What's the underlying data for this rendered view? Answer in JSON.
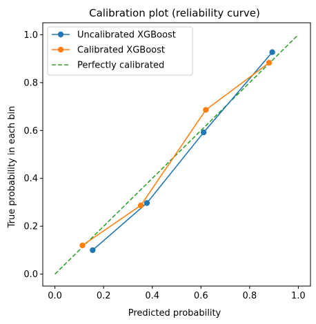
{
  "chart_data": {
    "type": "line",
    "title": "Calibration plot (reliability curve)",
    "xlabel": "Predicted probability",
    "ylabel": "True probability in each bin",
    "xlim": [
      -0.05,
      1.05
    ],
    "ylim": [
      -0.05,
      1.05
    ],
    "xticks": [
      "0.0",
      "0.2",
      "0.4",
      "0.6",
      "0.8",
      "1.0"
    ],
    "yticks": [
      "0.0",
      "0.2",
      "0.4",
      "0.6",
      "0.8",
      "1.0"
    ],
    "grid": false,
    "legend_position": "top-left",
    "series": [
      {
        "name": "Uncalibrated XGBoost",
        "color": "#1f77b4",
        "style": "solid",
        "marker": "circle",
        "x": [
          0.155,
          0.378,
          0.611,
          0.893
        ],
        "y": [
          0.1,
          0.297,
          0.592,
          0.927
        ]
      },
      {
        "name": "Calibrated XGBoost",
        "color": "#ff7f0e",
        "style": "solid",
        "marker": "circle",
        "x": [
          0.113,
          0.353,
          0.62,
          0.88
        ],
        "y": [
          0.12,
          0.287,
          0.686,
          0.883
        ]
      },
      {
        "name": "Perfectly calibrated",
        "color": "#2ca02c",
        "style": "dashed",
        "marker": "none",
        "x": [
          0.0,
          1.0
        ],
        "y": [
          0.0,
          1.0
        ]
      }
    ]
  }
}
